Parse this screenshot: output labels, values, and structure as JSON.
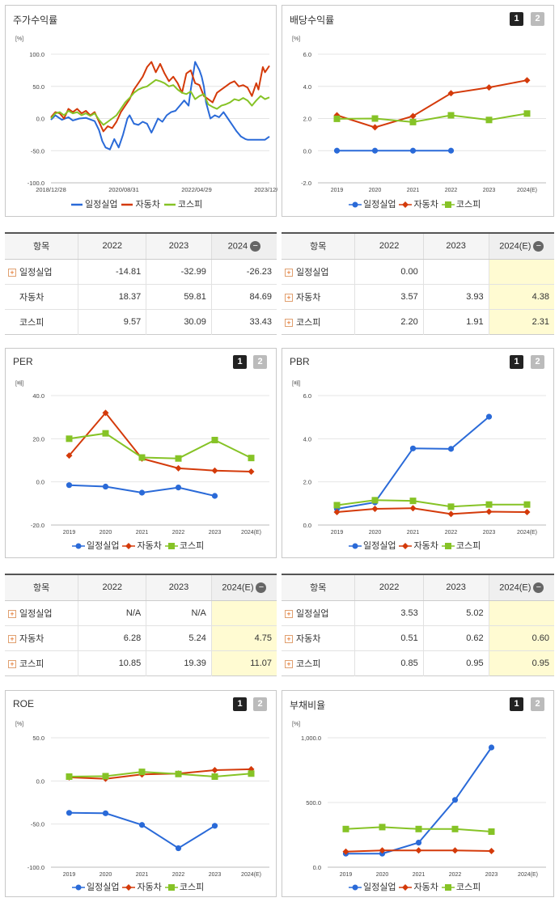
{
  "colors": {
    "일정실업": "#2a6ad8",
    "자동차": "#d43a0a",
    "코스피": "#86c326"
  },
  "legend_names": [
    "일정실업",
    "자동차",
    "코스피"
  ],
  "pager": [
    "1",
    "2"
  ],
  "panels": {
    "stock": {
      "title": "주가수익률",
      "unit": "[%]",
      "yticks": [
        "100.0",
        "50.0",
        "0.0",
        "-50.0",
        "-100.0"
      ],
      "xticks": [
        "2018/12/28",
        "2020/08/31",
        "2022/04/29",
        "2023/12/28"
      ]
    },
    "dividend": {
      "title": "배당수익률",
      "unit": "[%]",
      "yticks": [
        "6.0",
        "4.0",
        "2.0",
        "0.0",
        "-2.0"
      ],
      "xticks": [
        "2019",
        "2020",
        "2021",
        "2022",
        "2023",
        "2024(E)"
      ]
    },
    "per": {
      "title": "PER",
      "unit": "[배]",
      "yticks": [
        "40.0",
        "20.0",
        "0.0",
        "-20.0"
      ],
      "xticks": [
        "2019",
        "2020",
        "2021",
        "2022",
        "2023",
        "2024(E)"
      ]
    },
    "pbr": {
      "title": "PBR",
      "unit": "[배]",
      "yticks": [
        "6.0",
        "4.0",
        "2.0",
        "0.0"
      ],
      "xticks": [
        "2019",
        "2020",
        "2021",
        "2022",
        "2023",
        "2024(E)"
      ]
    },
    "roe": {
      "title": "ROE",
      "unit": "[%]",
      "yticks": [
        "50.0",
        "0.0",
        "-50.0",
        "-100.0"
      ],
      "xticks": [
        "2019",
        "2020",
        "2021",
        "2022",
        "2023",
        "2024(E)"
      ]
    },
    "debt": {
      "title": "부채비율",
      "unit": "[%]",
      "yticks": [
        "1,000.0",
        "500.0",
        "0.0"
      ],
      "xticks": [
        "2019",
        "2020",
        "2021",
        "2022",
        "2023",
        "2024(E)"
      ]
    }
  },
  "tables": {
    "stock": {
      "header": [
        "항목",
        "2022",
        "2023",
        "2024"
      ],
      "rows": [
        {
          "name": "일정실업",
          "plus": true,
          "vals": [
            "-14.81",
            "-32.99",
            "-26.23"
          ]
        },
        {
          "name": "자동차",
          "plus": false,
          "vals": [
            "18.37",
            "59.81",
            "84.69"
          ]
        },
        {
          "name": "코스피",
          "plus": false,
          "vals": [
            "9.57",
            "30.09",
            "33.43"
          ]
        }
      ]
    },
    "dividend": {
      "header": [
        "항목",
        "2022",
        "2023",
        "2024(E)"
      ],
      "rows": [
        {
          "name": "일정실업",
          "plus": true,
          "vals": [
            "0.00",
            "",
            ""
          ]
        },
        {
          "name": "자동차",
          "plus": true,
          "vals": [
            "3.57",
            "3.93",
            "4.38"
          ]
        },
        {
          "name": "코스피",
          "plus": true,
          "vals": [
            "2.20",
            "1.91",
            "2.31"
          ]
        }
      ]
    },
    "per": {
      "header": [
        "항목",
        "2022",
        "2023",
        "2024(E)"
      ],
      "rows": [
        {
          "name": "일정실업",
          "plus": true,
          "vals": [
            "N/A",
            "N/A",
            ""
          ]
        },
        {
          "name": "자동차",
          "plus": true,
          "vals": [
            "6.28",
            "5.24",
            "4.75"
          ]
        },
        {
          "name": "코스피",
          "plus": true,
          "vals": [
            "10.85",
            "19.39",
            "11.07"
          ]
        }
      ]
    },
    "pbr": {
      "header": [
        "항목",
        "2022",
        "2023",
        "2024(E)"
      ],
      "rows": [
        {
          "name": "일정실업",
          "plus": true,
          "vals": [
            "3.53",
            "5.02",
            ""
          ]
        },
        {
          "name": "자동차",
          "plus": true,
          "vals": [
            "0.51",
            "0.62",
            "0.60"
          ]
        },
        {
          "name": "코스피",
          "plus": true,
          "vals": [
            "0.85",
            "0.95",
            "0.95"
          ]
        }
      ]
    }
  },
  "chart_data": [
    {
      "type": "line",
      "title": "주가수익률",
      "ylabel": "[%]",
      "ylim": [
        -100,
        100
      ],
      "x": [
        "2018/12/28",
        "2020/08/31",
        "2022/04/29",
        "2023/12/28"
      ],
      "series": [
        {
          "name": "일정실업",
          "points": [
            [
              0,
              -2
            ],
            [
              0.02,
              5
            ],
            [
              0.05,
              -2
            ],
            [
              0.08,
              2
            ],
            [
              0.1,
              -3
            ],
            [
              0.13,
              0
            ],
            [
              0.16,
              1
            ],
            [
              0.2,
              -4
            ],
            [
              0.22,
              -18
            ],
            [
              0.235,
              -35
            ],
            [
              0.25,
              -45
            ],
            [
              0.27,
              -48
            ],
            [
              0.29,
              -32
            ],
            [
              0.31,
              -45
            ],
            [
              0.33,
              -25
            ],
            [
              0.35,
              0
            ],
            [
              0.36,
              5
            ],
            [
              0.38,
              -8
            ],
            [
              0.4,
              -10
            ],
            [
              0.42,
              -5
            ],
            [
              0.44,
              -8
            ],
            [
              0.46,
              -22
            ],
            [
              0.47,
              -15
            ],
            [
              0.49,
              0
            ],
            [
              0.51,
              -5
            ],
            [
              0.53,
              5
            ],
            [
              0.55,
              10
            ],
            [
              0.57,
              12
            ],
            [
              0.59,
              20
            ],
            [
              0.61,
              28
            ],
            [
              0.63,
              20
            ],
            [
              0.64,
              45
            ],
            [
              0.66,
              88
            ],
            [
              0.68,
              75
            ],
            [
              0.69,
              65
            ],
            [
              0.7,
              50
            ],
            [
              0.71,
              25
            ],
            [
              0.73,
              0
            ],
            [
              0.75,
              5
            ],
            [
              0.77,
              2
            ],
            [
              0.79,
              10
            ],
            [
              0.81,
              0
            ],
            [
              0.83,
              -10
            ],
            [
              0.85,
              -20
            ],
            [
              0.87,
              -28
            ],
            [
              0.89,
              -32
            ],
            [
              0.9,
              -33
            ],
            [
              0.92,
              -33
            ],
            [
              0.94,
              -33
            ],
            [
              0.96,
              -33
            ],
            [
              0.98,
              -33
            ],
            [
              1,
              -28
            ]
          ]
        },
        {
          "name": "자동차",
          "points": [
            [
              0,
              2
            ],
            [
              0.02,
              10
            ],
            [
              0.04,
              8
            ],
            [
              0.06,
              0
            ],
            [
              0.08,
              15
            ],
            [
              0.1,
              10
            ],
            [
              0.12,
              15
            ],
            [
              0.14,
              8
            ],
            [
              0.16,
              12
            ],
            [
              0.18,
              5
            ],
            [
              0.2,
              10
            ],
            [
              0.22,
              -5
            ],
            [
              0.24,
              -20
            ],
            [
              0.26,
              -12
            ],
            [
              0.28,
              -15
            ],
            [
              0.3,
              -5
            ],
            [
              0.32,
              10
            ],
            [
              0.34,
              20
            ],
            [
              0.36,
              30
            ],
            [
              0.38,
              45
            ],
            [
              0.4,
              55
            ],
            [
              0.42,
              65
            ],
            [
              0.44,
              80
            ],
            [
              0.46,
              88
            ],
            [
              0.48,
              72
            ],
            [
              0.5,
              85
            ],
            [
              0.52,
              70
            ],
            [
              0.54,
              58
            ],
            [
              0.56,
              65
            ],
            [
              0.58,
              55
            ],
            [
              0.6,
              40
            ],
            [
              0.62,
              70
            ],
            [
              0.64,
              75
            ],
            [
              0.66,
              55
            ],
            [
              0.68,
              52
            ],
            [
              0.7,
              35
            ],
            [
              0.72,
              30
            ],
            [
              0.74,
              25
            ],
            [
              0.76,
              40
            ],
            [
              0.78,
              45
            ],
            [
              0.8,
              50
            ],
            [
              0.82,
              55
            ],
            [
              0.84,
              58
            ],
            [
              0.86,
              50
            ],
            [
              0.88,
              52
            ],
            [
              0.9,
              48
            ],
            [
              0.92,
              35
            ],
            [
              0.94,
              55
            ],
            [
              0.95,
              45
            ],
            [
              0.97,
              80
            ],
            [
              0.98,
              72
            ],
            [
              1,
              82
            ]
          ]
        },
        {
          "name": "코스피",
          "points": [
            [
              0,
              0
            ],
            [
              0.02,
              8
            ],
            [
              0.04,
              10
            ],
            [
              0.06,
              5
            ],
            [
              0.08,
              12
            ],
            [
              0.1,
              8
            ],
            [
              0.12,
              10
            ],
            [
              0.14,
              5
            ],
            [
              0.16,
              8
            ],
            [
              0.18,
              4
            ],
            [
              0.2,
              8
            ],
            [
              0.22,
              -2
            ],
            [
              0.24,
              -10
            ],
            [
              0.26,
              -5
            ],
            [
              0.28,
              0
            ],
            [
              0.3,
              5
            ],
            [
              0.32,
              15
            ],
            [
              0.34,
              25
            ],
            [
              0.36,
              32
            ],
            [
              0.38,
              40
            ],
            [
              0.4,
              45
            ],
            [
              0.42,
              48
            ],
            [
              0.44,
              50
            ],
            [
              0.46,
              55
            ],
            [
              0.48,
              60
            ],
            [
              0.5,
              58
            ],
            [
              0.52,
              55
            ],
            [
              0.54,
              50
            ],
            [
              0.56,
              52
            ],
            [
              0.58,
              45
            ],
            [
              0.6,
              40
            ],
            [
              0.62,
              38
            ],
            [
              0.64,
              42
            ],
            [
              0.66,
              30
            ],
            [
              0.68,
              35
            ],
            [
              0.7,
              38
            ],
            [
              0.72,
              22
            ],
            [
              0.74,
              18
            ],
            [
              0.76,
              15
            ],
            [
              0.78,
              20
            ],
            [
              0.8,
              22
            ],
            [
              0.82,
              25
            ],
            [
              0.84,
              30
            ],
            [
              0.86,
              28
            ],
            [
              0.88,
              32
            ],
            [
              0.9,
              28
            ],
            [
              0.92,
              20
            ],
            [
              0.94,
              28
            ],
            [
              0.96,
              35
            ],
            [
              0.98,
              30
            ],
            [
              1,
              33
            ]
          ]
        }
      ]
    },
    {
      "type": "line",
      "title": "배당수익률",
      "ylabel": "[%]",
      "ylim": [
        -2,
        6
      ],
      "categories": [
        "2019",
        "2020",
        "2021",
        "2022",
        "2023",
        "2024(E)"
      ],
      "series": [
        {
          "name": "일정실업",
          "values": [
            0.0,
            0.0,
            0.0,
            0.0,
            null,
            null
          ]
        },
        {
          "name": "자동차",
          "values": [
            2.2,
            1.45,
            2.15,
            3.57,
            3.93,
            4.38
          ]
        },
        {
          "name": "코스피",
          "values": [
            1.98,
            2.0,
            1.78,
            2.2,
            1.91,
            2.31
          ]
        }
      ]
    },
    {
      "type": "line",
      "title": "PER",
      "ylabel": "[배]",
      "ylim": [
        -20,
        40
      ],
      "categories": [
        "2019",
        "2020",
        "2021",
        "2022",
        "2023",
        "2024(E)"
      ],
      "series": [
        {
          "name": "일정실업",
          "values": [
            -1.5,
            -2.2,
            -5.0,
            -2.6,
            -6.5,
            null
          ]
        },
        {
          "name": "자동차",
          "values": [
            12.2,
            32.0,
            10.8,
            6.28,
            5.24,
            4.75
          ]
        },
        {
          "name": "코스피",
          "values": [
            20.0,
            22.5,
            11.3,
            10.85,
            19.39,
            11.07
          ]
        }
      ]
    },
    {
      "type": "line",
      "title": "PBR",
      "ylabel": "[배]",
      "ylim": [
        0,
        6
      ],
      "categories": [
        "2019",
        "2020",
        "2021",
        "2022",
        "2023",
        "2024(E)"
      ],
      "series": [
        {
          "name": "일정실업",
          "values": [
            0.75,
            1.05,
            3.55,
            3.53,
            5.02,
            null
          ]
        },
        {
          "name": "자동차",
          "values": [
            0.6,
            0.75,
            0.78,
            0.51,
            0.62,
            0.6
          ]
        },
        {
          "name": "코스피",
          "values": [
            0.92,
            1.15,
            1.12,
            0.85,
            0.95,
            0.95
          ]
        }
      ]
    },
    {
      "type": "line",
      "title": "ROE",
      "ylabel": "[%]",
      "ylim": [
        -100,
        50
      ],
      "categories": [
        "2019",
        "2020",
        "2021",
        "2022",
        "2023",
        "2024(E)"
      ],
      "series": [
        {
          "name": "일정실업",
          "values": [
            -37,
            -37.5,
            -51,
            -78,
            -52,
            null
          ]
        },
        {
          "name": "자동차",
          "values": [
            4.2,
            2.5,
            7.5,
            8.5,
            12.5,
            13.5
          ]
        },
        {
          "name": "코스피",
          "values": [
            5.0,
            5.5,
            10.5,
            8.0,
            5.0,
            8.5
          ]
        }
      ]
    },
    {
      "type": "line",
      "title": "부채비율",
      "ylabel": "[%]",
      "ylim": [
        0,
        1000
      ],
      "categories": [
        "2019",
        "2020",
        "2021",
        "2022",
        "2023",
        "2024(E)"
      ],
      "series": [
        {
          "name": "일정실업",
          "values": [
            105,
            105,
            190,
            520,
            925,
            null
          ]
        },
        {
          "name": "자동차",
          "values": [
            120,
            130,
            130,
            130,
            125,
            null
          ]
        },
        {
          "name": "코스피",
          "values": [
            295,
            310,
            295,
            295,
            275,
            null
          ]
        }
      ]
    }
  ]
}
